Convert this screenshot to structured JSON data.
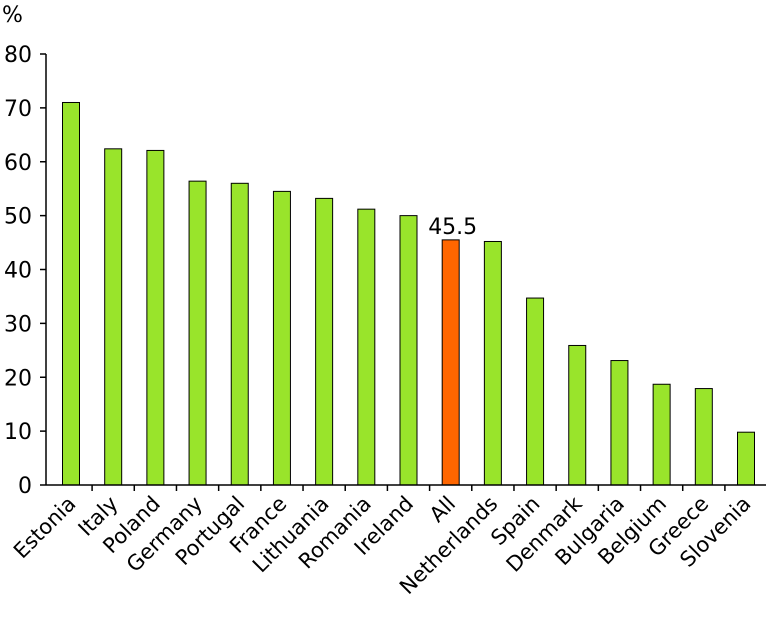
{
  "chart_data": {
    "type": "bar",
    "title": "",
    "xlabel": "",
    "ylabel": "%",
    "ylim": [
      0,
      80
    ],
    "yticks": [
      0,
      10,
      20,
      30,
      40,
      50,
      60,
      70,
      80
    ],
    "grid": false,
    "legend": "none",
    "categories": [
      "Estonia",
      "Italy",
      "Poland",
      "Germany",
      "Portugal",
      "France",
      "Lithuania",
      "Romania",
      "Ireland",
      "All",
      "Netherlands",
      "Spain",
      "Denmark",
      "Bulgaria",
      "Belgium",
      "Greece",
      "Slovenia"
    ],
    "values": [
      71,
      62.4,
      62.1,
      56.4,
      56,
      54.5,
      53.2,
      51.2,
      50,
      45.5,
      45.2,
      34.7,
      25.9,
      23.1,
      18.7,
      17.9,
      9.8
    ],
    "highlight_category": "All",
    "annotations": [
      {
        "category": "All",
        "text": "45.5"
      }
    ],
    "colors": {
      "bar": "#99e42b",
      "highlight": "#ff6600",
      "outline": "#000000"
    }
  }
}
